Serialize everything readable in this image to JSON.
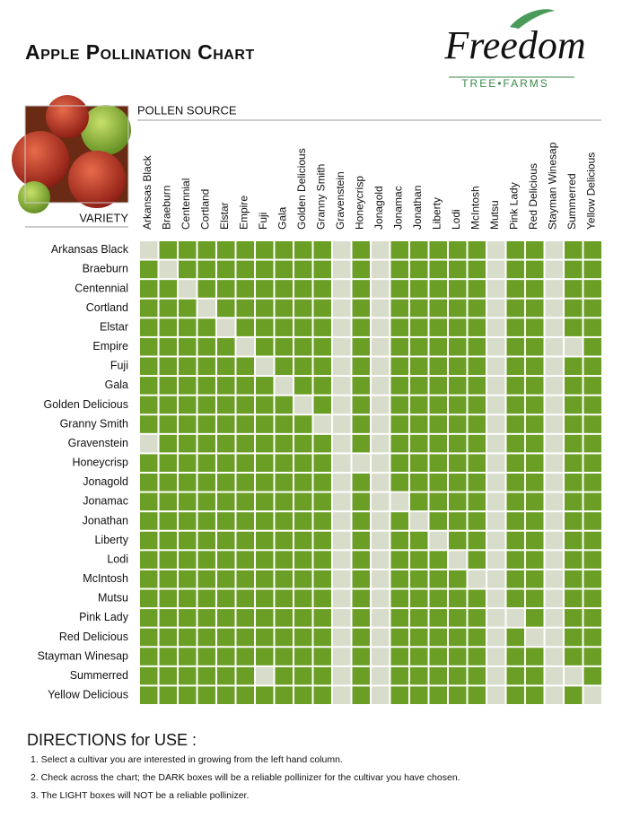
{
  "header": {
    "title": "Apple Pollination Chart",
    "logo_name": "Freedom",
    "logo_sub": "TREE•FARMS"
  },
  "grid": {
    "pollen_label": "POLLEN SOURCE",
    "variety_label": "VARIETY",
    "columns": [
      "Arkansas Black",
      "Braeburn",
      "Centennial",
      "Cortland",
      "Elstar",
      "Empire",
      "Fuji",
      "Gala",
      "Golden Delicious",
      "Granny Smith",
      "Gravenstein",
      "Honeycrisp",
      "Jonagold",
      "Jonamac",
      "Jonathan",
      "Liberty",
      "Lodi",
      "McIntosh",
      "Mutsu",
      "Pink Lady",
      "Red Delicious",
      "Stayman Winesap",
      "Summerred",
      "Yellow Delicious"
    ],
    "rows": [
      {
        "label": "Arkansas Black",
        "cells": [
          0,
          1,
          1,
          1,
          1,
          1,
          1,
          1,
          1,
          1,
          0,
          1,
          0,
          1,
          1,
          1,
          1,
          1,
          0,
          1,
          1,
          0,
          1,
          1
        ]
      },
      {
        "label": "Braeburn",
        "cells": [
          1,
          0,
          1,
          1,
          1,
          1,
          1,
          1,
          1,
          1,
          0,
          1,
          0,
          1,
          1,
          1,
          1,
          1,
          0,
          1,
          1,
          0,
          1,
          1
        ]
      },
      {
        "label": "Centennial",
        "cells": [
          1,
          1,
          0,
          1,
          1,
          1,
          1,
          1,
          1,
          1,
          0,
          1,
          0,
          1,
          1,
          1,
          1,
          1,
          0,
          1,
          1,
          0,
          1,
          1
        ]
      },
      {
        "label": "Cortland",
        "cells": [
          1,
          1,
          1,
          0,
          1,
          1,
          1,
          1,
          1,
          1,
          0,
          1,
          0,
          1,
          1,
          1,
          1,
          1,
          0,
          1,
          1,
          0,
          1,
          1
        ]
      },
      {
        "label": "Elstar",
        "cells": [
          1,
          1,
          1,
          1,
          0,
          1,
          1,
          1,
          1,
          1,
          0,
          1,
          0,
          1,
          1,
          1,
          1,
          1,
          0,
          1,
          1,
          0,
          1,
          1
        ]
      },
      {
        "label": "Empire",
        "cells": [
          1,
          1,
          1,
          1,
          1,
          0,
          1,
          1,
          1,
          1,
          0,
          1,
          0,
          1,
          1,
          1,
          1,
          1,
          0,
          1,
          1,
          0,
          0,
          1
        ]
      },
      {
        "label": "Fuji",
        "cells": [
          1,
          1,
          1,
          1,
          1,
          1,
          0,
          1,
          1,
          1,
          0,
          1,
          0,
          1,
          1,
          1,
          1,
          1,
          0,
          1,
          1,
          0,
          1,
          1
        ]
      },
      {
        "label": "Gala",
        "cells": [
          1,
          1,
          1,
          1,
          1,
          1,
          1,
          0,
          1,
          1,
          0,
          1,
          0,
          1,
          1,
          1,
          1,
          1,
          0,
          1,
          1,
          0,
          1,
          1
        ]
      },
      {
        "label": "Golden Delicious",
        "cells": [
          1,
          1,
          1,
          1,
          1,
          1,
          1,
          1,
          0,
          1,
          0,
          1,
          0,
          1,
          1,
          1,
          1,
          1,
          0,
          1,
          1,
          0,
          1,
          1
        ]
      },
      {
        "label": "Granny Smith",
        "cells": [
          1,
          1,
          1,
          1,
          1,
          1,
          1,
          1,
          1,
          0,
          0,
          1,
          0,
          1,
          1,
          1,
          1,
          1,
          0,
          1,
          1,
          0,
          1,
          1
        ]
      },
      {
        "label": "Gravenstein",
        "cells": [
          0,
          1,
          1,
          1,
          1,
          1,
          1,
          1,
          1,
          1,
          0,
          1,
          0,
          1,
          1,
          1,
          1,
          1,
          0,
          1,
          1,
          0,
          1,
          1
        ]
      },
      {
        "label": "Honeycrisp",
        "cells": [
          1,
          1,
          1,
          1,
          1,
          1,
          1,
          1,
          1,
          1,
          0,
          0,
          0,
          1,
          1,
          1,
          1,
          1,
          0,
          1,
          1,
          0,
          1,
          1
        ]
      },
      {
        "label": "Jonagold",
        "cells": [
          1,
          1,
          1,
          1,
          1,
          1,
          1,
          1,
          1,
          1,
          0,
          1,
          0,
          1,
          1,
          1,
          1,
          1,
          0,
          1,
          1,
          0,
          1,
          1
        ]
      },
      {
        "label": "Jonamac",
        "cells": [
          1,
          1,
          1,
          1,
          1,
          1,
          1,
          1,
          1,
          1,
          0,
          1,
          0,
          0,
          1,
          1,
          1,
          1,
          0,
          1,
          1,
          0,
          1,
          1
        ]
      },
      {
        "label": "Jonathan",
        "cells": [
          1,
          1,
          1,
          1,
          1,
          1,
          1,
          1,
          1,
          1,
          0,
          1,
          0,
          1,
          0,
          1,
          1,
          1,
          0,
          1,
          1,
          0,
          1,
          1
        ]
      },
      {
        "label": "Liberty",
        "cells": [
          1,
          1,
          1,
          1,
          1,
          1,
          1,
          1,
          1,
          1,
          0,
          1,
          0,
          1,
          1,
          0,
          1,
          1,
          0,
          1,
          1,
          0,
          1,
          1
        ]
      },
      {
        "label": "Lodi",
        "cells": [
          1,
          1,
          1,
          1,
          1,
          1,
          1,
          1,
          1,
          1,
          0,
          1,
          0,
          1,
          1,
          1,
          0,
          1,
          0,
          1,
          1,
          0,
          1,
          1
        ]
      },
      {
        "label": "McIntosh",
        "cells": [
          1,
          1,
          1,
          1,
          1,
          1,
          1,
          1,
          1,
          1,
          0,
          1,
          0,
          1,
          1,
          1,
          1,
          0,
          0,
          1,
          1,
          0,
          1,
          1
        ]
      },
      {
        "label": "Mutsu",
        "cells": [
          1,
          1,
          1,
          1,
          1,
          1,
          1,
          1,
          1,
          1,
          0,
          1,
          0,
          1,
          1,
          1,
          1,
          1,
          0,
          1,
          1,
          0,
          1,
          1
        ]
      },
      {
        "label": "Pink Lady",
        "cells": [
          1,
          1,
          1,
          1,
          1,
          1,
          1,
          1,
          1,
          1,
          0,
          1,
          0,
          1,
          1,
          1,
          1,
          1,
          0,
          0,
          1,
          0,
          1,
          1
        ]
      },
      {
        "label": "Red Delicious",
        "cells": [
          1,
          1,
          1,
          1,
          1,
          1,
          1,
          1,
          1,
          1,
          0,
          1,
          0,
          1,
          1,
          1,
          1,
          1,
          0,
          1,
          0,
          0,
          1,
          1
        ]
      },
      {
        "label": "Stayman Winesap",
        "cells": [
          1,
          1,
          1,
          1,
          1,
          1,
          1,
          1,
          1,
          1,
          0,
          1,
          0,
          1,
          1,
          1,
          1,
          1,
          0,
          1,
          1,
          0,
          1,
          1
        ]
      },
      {
        "label": "Summerred",
        "cells": [
          1,
          1,
          1,
          1,
          1,
          1,
          0,
          1,
          1,
          1,
          0,
          1,
          0,
          1,
          1,
          1,
          1,
          1,
          0,
          1,
          1,
          0,
          0,
          1
        ]
      },
      {
        "label": "Yellow Delicious",
        "cells": [
          1,
          1,
          1,
          1,
          1,
          1,
          1,
          1,
          1,
          1,
          0,
          1,
          0,
          1,
          1,
          1,
          1,
          1,
          0,
          1,
          1,
          0,
          1,
          0
        ]
      }
    ]
  },
  "directions": {
    "heading": "DIRECTIONS for USE :",
    "items": [
      "1.  Select a cultivar you are interested in growing from the left hand column.",
      "2.  Check across the chart; the DARK boxes will be a reliable pollinizer for the cultivar you have chosen.",
      "3.  The LIGHT boxes will NOT be a reliable pollinizer."
    ]
  }
}
